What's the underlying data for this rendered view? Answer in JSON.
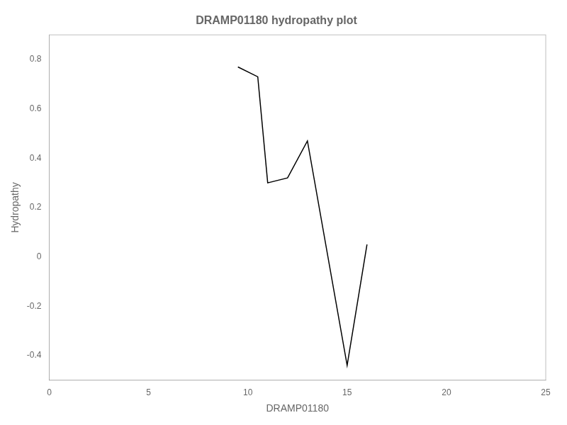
{
  "chart_data": {
    "type": "line",
    "title": "DRAMP01180 hydropathy plot",
    "xlabel": "DRAMP01180",
    "ylabel": "Hydropathy",
    "x": [
      9.5,
      10.5,
      11.0,
      12.0,
      13.0,
      15.0,
      16.0
    ],
    "values": [
      0.77,
      0.73,
      0.3,
      0.32,
      0.47,
      -0.44,
      0.05
    ],
    "color": "#000000",
    "xlim": [
      0,
      25
    ],
    "ylim": [
      -0.5,
      0.9
    ],
    "xticks": [
      0,
      5,
      10,
      15,
      20,
      25
    ],
    "yticks": [
      -0.4,
      -0.2,
      0.0,
      0.2,
      0.4,
      0.6,
      0.8
    ],
    "grid": false
  }
}
